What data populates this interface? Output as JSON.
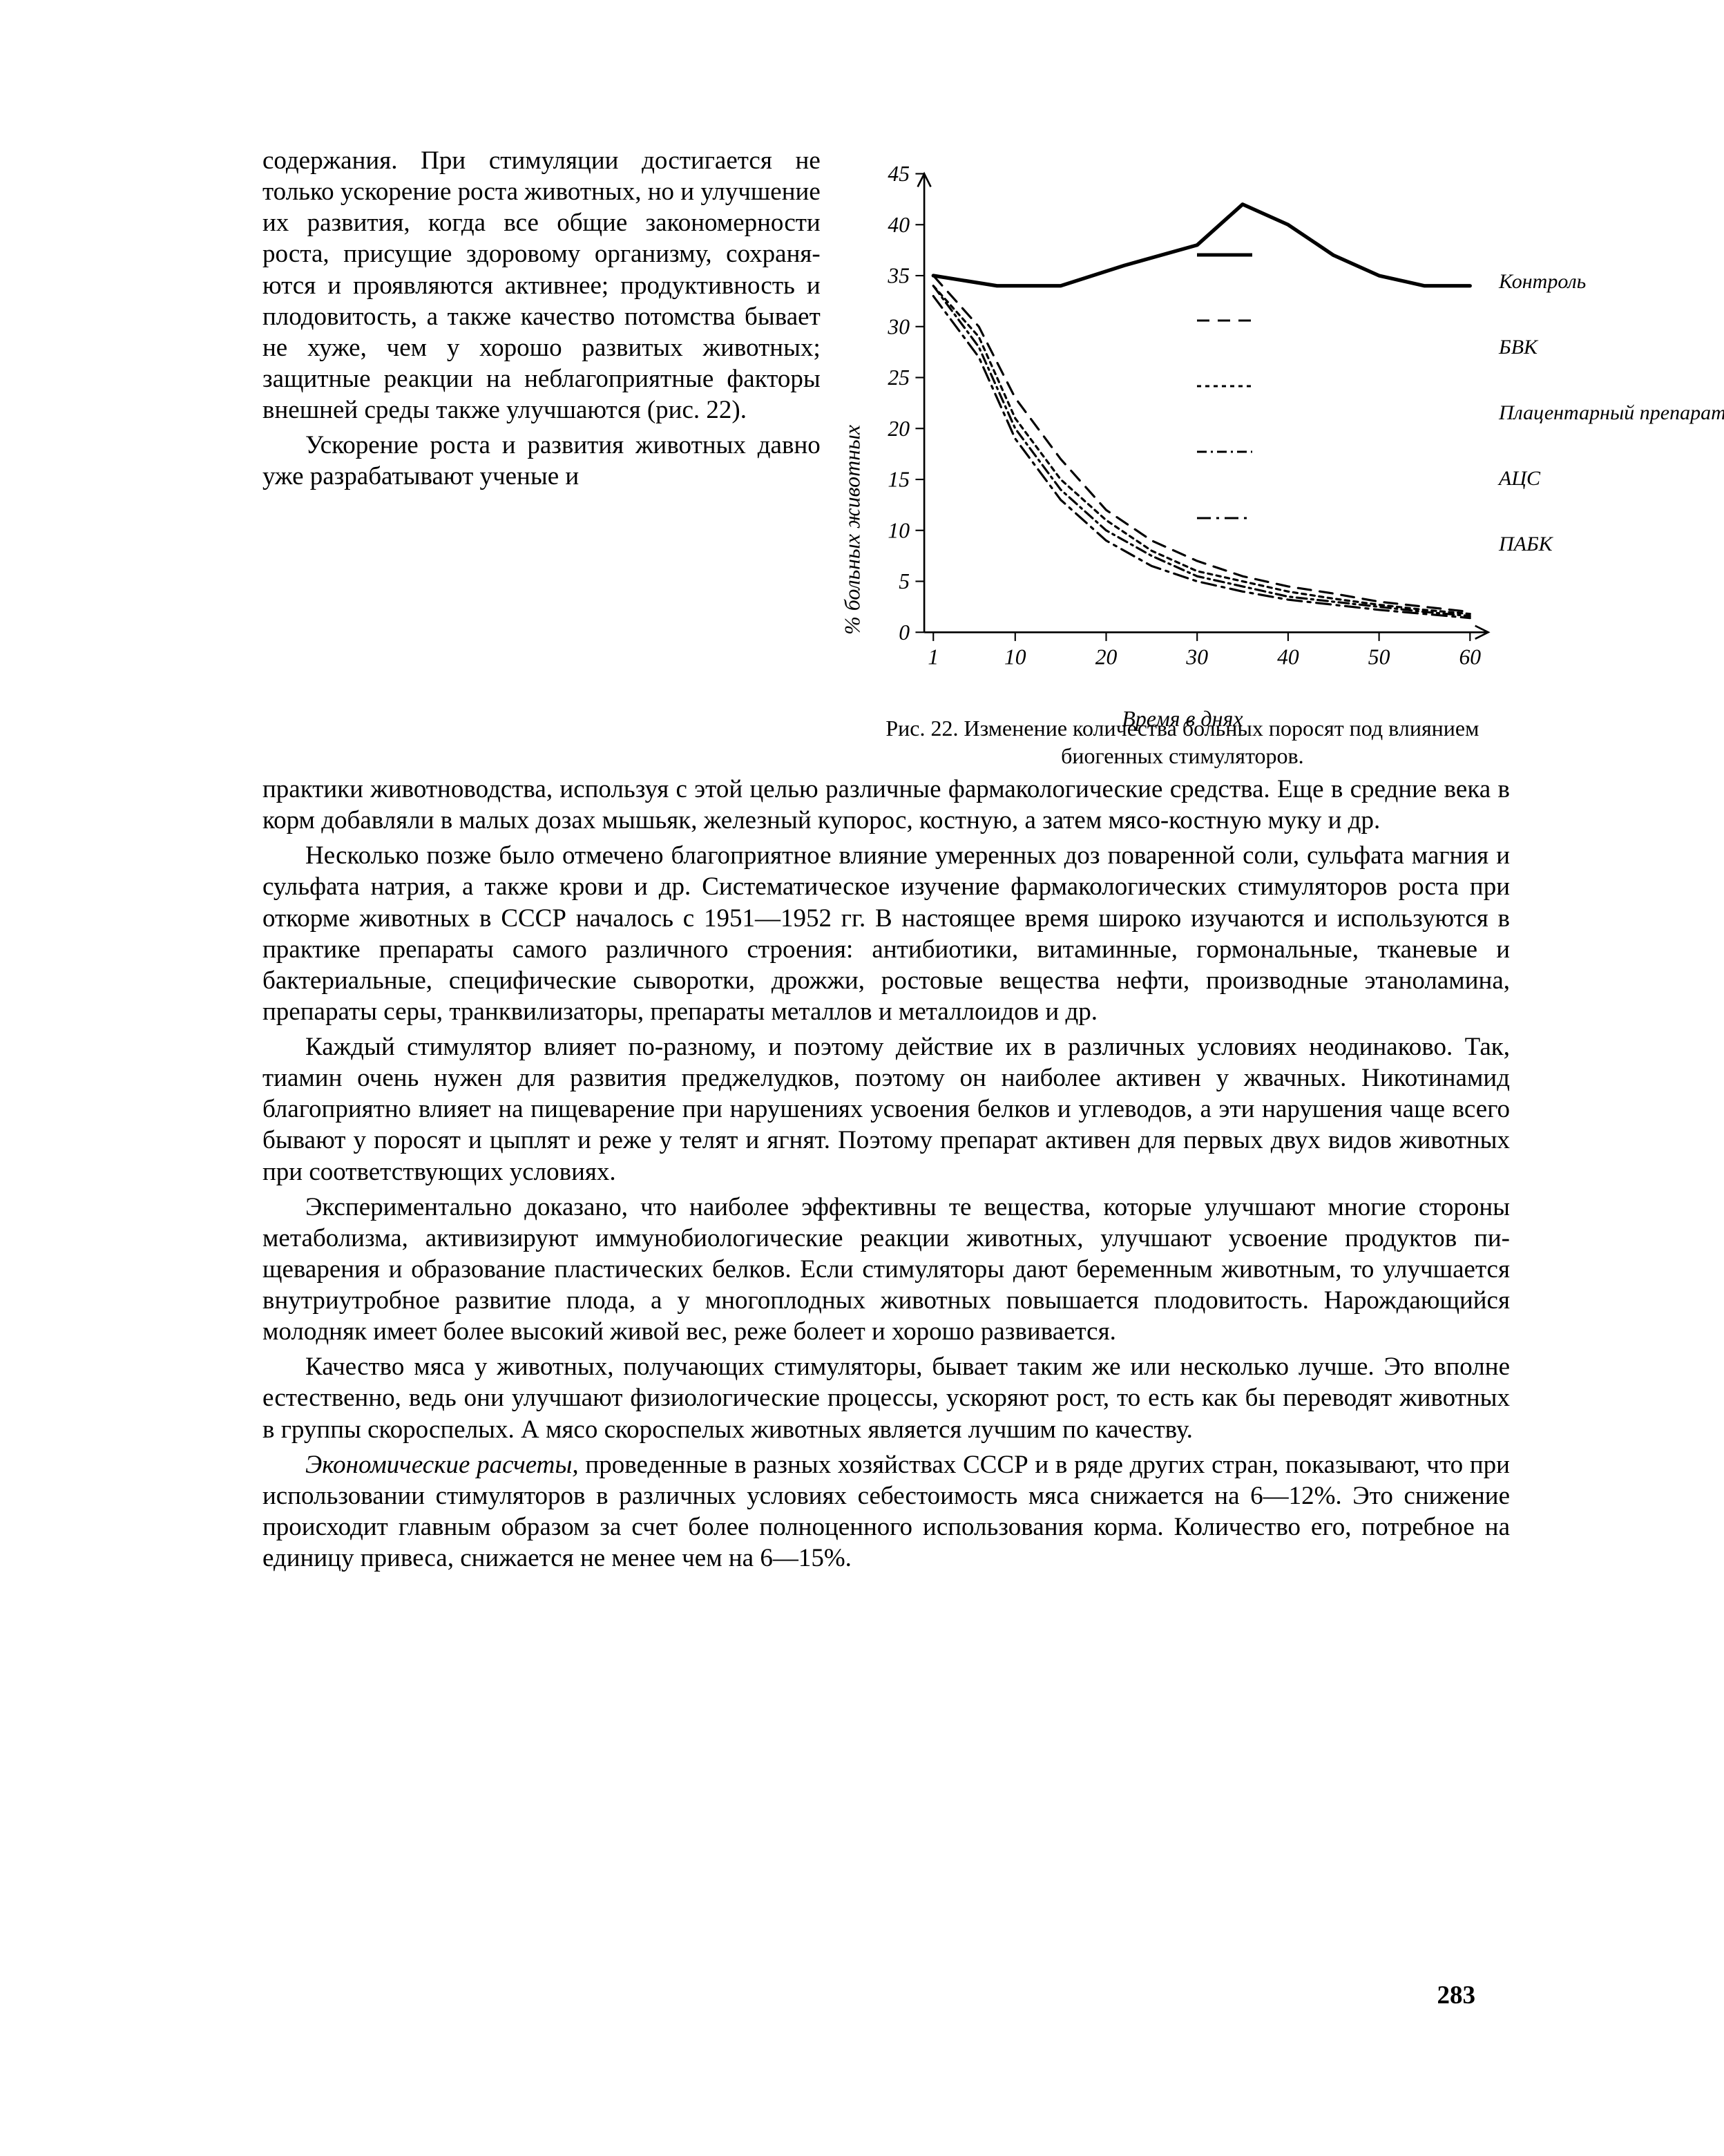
{
  "page_number": "283",
  "left_column": {
    "p1": "содержания. При стимуля­ции достигается не только ускорение роста животных, но и улучшение их развития, когда все общие закономер­ности роста, присущие здо­ровому организму, сохраня­ются и проявляются актив­нее; продуктивность и пло­довитость, а также качество потомства бывает не хуже, чем у хорошо развитых жи­вотных; защитные реакции на неблагоприятные факто­ры внешней среды также улучшаются (рис. 22).",
    "p2": "Ускорение роста и раз­вития животных давно уже разрабатывают ученые и"
  },
  "join": "практики животноводства, используя с этой целью различные фармако­логические средства. Еще в средние века в корм добавляли в малых до­зах мышьяк, железный купорос, костную, а затем мясо-костную муку и др.",
  "body": {
    "p1": "Несколько позже было отмечено благоприятное влияние умерен­ных доз поваренной соли, сульфата магния и сульфата натрия, а также крови и др. Систематическое изучение фармакологических стимулято­ров роста при откорме животных в СССР началось с 1951—1952 гг. В настоящее время широко изучаются и используются в практике пре­параты самого различного строения: антибиотики, витаминные, гормо­нальные, тканевые и бактериальные, специфические сыворотки, дрожжи, ростовые вещества нефти, производные этаноламина, препараты серы, транквилизаторы, препараты металлов и металлоидов и др.",
    "p2": "Каждый стимулятор влияет по-разному, и поэтому действие их в различных условиях неодинаково. Так, тиамин очень нужен для раз­вития преджелудков, поэтому он наиболее активен у жвачных. Никотин­амид благоприятно влияет на пищеварение при нарушениях усвоения белков и углеводов, а эти нарушения чаще всего бывают у поросят и цыплят и реже у телят и ягнят. Поэтому препарат активен для пер­вых двух видов животных при соответствующих условиях.",
    "p3": "Экспериментально доказано, что наиболее эффективны те вещества, которые улучшают многие стороны метаболизма, активизируют имму­нобиологические реакции животных, улучшают усвоение продуктов пи­щеварения и образование пластических белков. Если стимуляторы да­ют беременным животным, то улучшается внутриутробное развитие плода, а у многоплодных животных повышается плодовитость. Нарож­дающийся молодняк имеет более высокий живой вес, реже болеет и хо­рошо развивается.",
    "p4": "Качество мяса у животных, получающих стимуляторы, бывает та­ким же или несколько лучше. Это вполне естественно, ведь они улуч­шают физиологические процессы, ускоряют рост, то есть как бы перево­дят животных в группы скороспелых. А мясо скороспелых животных является лучшим по качеству.",
    "p5_italic": "Экономические расчеты,",
    "p5_rest": " проведенные в разных хозяйствах СССР и в ряде других стран, показывают, что при использовании стимулято­ров в различных условиях себестоимость мяса снижается на 6—12%. Это снижение происходит главным образом за счет более полноценно­го использования корма. Количество его, потребное на единицу приве­са, снижается не менее чем на 6—15%."
  },
  "figure": {
    "caption": "Рис. 22. Изменение количества больных поросят под влиянием биогенных стимуляторов.",
    "y_label": "% больных животных",
    "x_label": "Время в днях",
    "y_ticks": [
      0,
      5,
      10,
      15,
      20,
      25,
      30,
      35,
      40,
      45
    ],
    "x_ticks": [
      1,
      10,
      20,
      30,
      40,
      50,
      60
    ],
    "xlim": [
      0,
      62
    ],
    "ylim": [
      0,
      45
    ],
    "stroke_color": "#000000",
    "axis_width": 2.5,
    "tick_len": 12,
    "tick_fontsize": 30,
    "series": [
      {
        "name": "Контроль",
        "dash": "",
        "width": 5,
        "points": [
          [
            1,
            35
          ],
          [
            8,
            34
          ],
          [
            15,
            34
          ],
          [
            22,
            36
          ],
          [
            30,
            38
          ],
          [
            35,
            42
          ],
          [
            40,
            40
          ],
          [
            45,
            37
          ],
          [
            50,
            35
          ],
          [
            55,
            34
          ],
          [
            60,
            34
          ]
        ]
      },
      {
        "name": "БВК",
        "dash": "18 12",
        "width": 3,
        "points": [
          [
            1,
            35
          ],
          [
            6,
            30
          ],
          [
            10,
            23
          ],
          [
            15,
            17
          ],
          [
            20,
            12
          ],
          [
            25,
            9
          ],
          [
            30,
            7
          ],
          [
            35,
            5.5
          ],
          [
            40,
            4.5
          ],
          [
            45,
            3.8
          ],
          [
            50,
            3
          ],
          [
            55,
            2.5
          ],
          [
            60,
            2
          ]
        ]
      },
      {
        "name": "Плацентарный препарат",
        "dash": "6 6",
        "width": 3,
        "points": [
          [
            1,
            34
          ],
          [
            6,
            29
          ],
          [
            10,
            21
          ],
          [
            15,
            15
          ],
          [
            20,
            11
          ],
          [
            25,
            8
          ],
          [
            30,
            6
          ],
          [
            35,
            5
          ],
          [
            40,
            4
          ],
          [
            45,
            3.3
          ],
          [
            50,
            2.7
          ],
          [
            55,
            2.2
          ],
          [
            60,
            1.8
          ]
        ]
      },
      {
        "name": "АЦС",
        "dash": "14 6 3 6",
        "width": 3,
        "points": [
          [
            1,
            34
          ],
          [
            6,
            28
          ],
          [
            10,
            20
          ],
          [
            15,
            14
          ],
          [
            20,
            10
          ],
          [
            25,
            7.5
          ],
          [
            30,
            5.5
          ],
          [
            35,
            4.5
          ],
          [
            40,
            3.5
          ],
          [
            45,
            3
          ],
          [
            50,
            2.5
          ],
          [
            55,
            2
          ],
          [
            60,
            1.6
          ]
        ]
      },
      {
        "name": "ПАБК",
        "dash": "20 8 4 8",
        "width": 3,
        "points": [
          [
            1,
            33
          ],
          [
            6,
            27
          ],
          [
            10,
            19
          ],
          [
            15,
            13
          ],
          [
            20,
            9
          ],
          [
            25,
            6.5
          ],
          [
            30,
            5
          ],
          [
            35,
            4
          ],
          [
            40,
            3.2
          ],
          [
            45,
            2.7
          ],
          [
            50,
            2.2
          ],
          [
            55,
            1.8
          ],
          [
            60,
            1.4
          ]
        ]
      }
    ],
    "legend_sample_dash": [
      "",
      "18 12",
      "6 6",
      "14 6 3 6",
      "20 8 4 8"
    ]
  }
}
